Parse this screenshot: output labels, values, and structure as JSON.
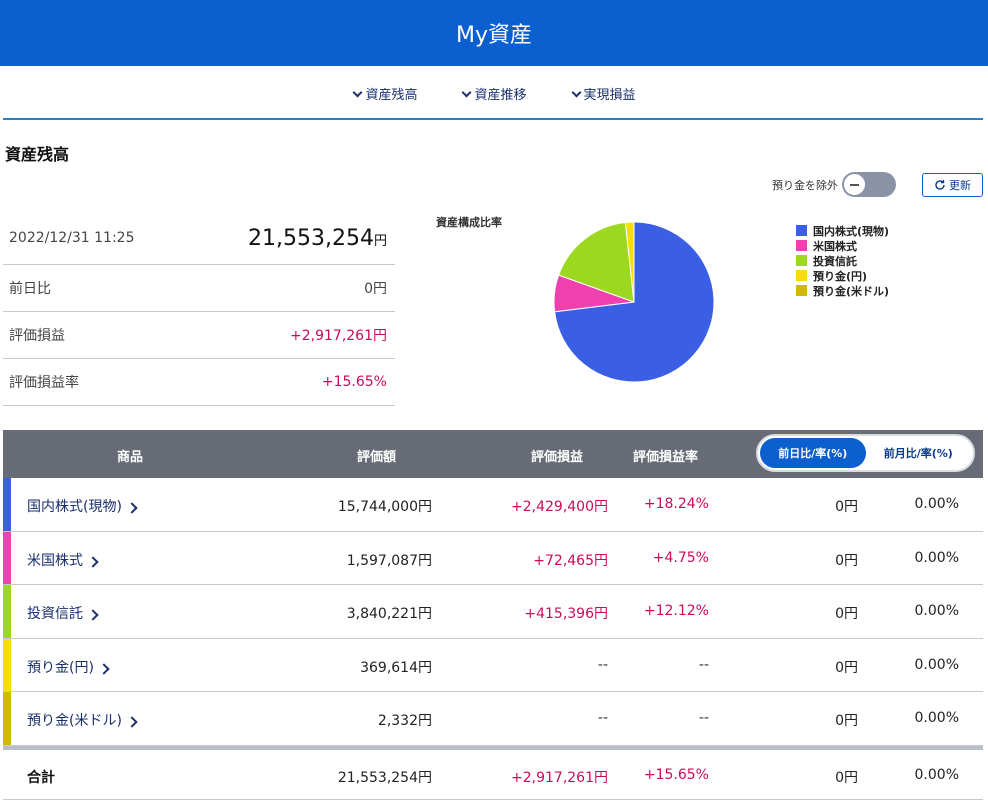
{
  "header": {
    "title": "My資産"
  },
  "subnav": {
    "items": [
      {
        "label": "資産残高"
      },
      {
        "label": "資産推移"
      },
      {
        "label": "実現損益"
      }
    ]
  },
  "section": {
    "title": "資産残高"
  },
  "controls": {
    "exclude_deposit_label": "預り金を除外",
    "refresh_label": "更新"
  },
  "summary": {
    "datetime": "2022/12/31 11:25",
    "total_value": "21,553,254",
    "yen": "円",
    "rows": [
      {
        "label": "前日比",
        "value": "0円"
      },
      {
        "label": "評価損益",
        "value": "+2,917,261円"
      },
      {
        "label": "評価損益率",
        "value": "+15.65%"
      }
    ]
  },
  "chart_data": {
    "type": "pie",
    "title": "資産構成比率",
    "categories": [
      "国内株式(現物)",
      "米国株式",
      "投資信託",
      "預り金(円)",
      "預り金(米ドル)"
    ],
    "values": [
      15744000,
      1597087,
      3840221,
      369614,
      2332
    ],
    "colors": [
      "#3a5fe5",
      "#f03fae",
      "#9bd81f",
      "#f5dd0c",
      "#d1b90a"
    ],
    "legend": "right"
  },
  "table": {
    "headers": {
      "product": "商品",
      "valuation": "評価額",
      "pl": "評価損益",
      "pl_rate": "評価損益率"
    },
    "toggle": {
      "day": "前日比/率(%)",
      "month": "前月比/率(%)"
    },
    "rows": [
      {
        "name": "国内株式(現物)",
        "color": "#3a5fe5",
        "valuation": "15,744,000円",
        "pl": "+2,429,400円",
        "pl_rate": "+18.24%",
        "diff": "0円",
        "diff_rate": "0.00%"
      },
      {
        "name": "米国株式",
        "color": "#f03fae",
        "valuation": "1,597,087円",
        "pl": "+72,465円",
        "pl_rate": "+4.75%",
        "diff": "0円",
        "diff_rate": "0.00%"
      },
      {
        "name": "投資信託",
        "color": "#9bd81f",
        "valuation": "3,840,221円",
        "pl": "+415,396円",
        "pl_rate": "+12.12%",
        "diff": "0円",
        "diff_rate": "0.00%"
      },
      {
        "name": "預り金(円)",
        "color": "#f5dd0c",
        "valuation": "369,614円",
        "pl": "--",
        "pl_rate": "--",
        "diff": "0円",
        "diff_rate": "0.00%"
      },
      {
        "name": "預り金(米ドル)",
        "color": "#d1b90a",
        "valuation": "2,332円",
        "pl": "--",
        "pl_rate": "--",
        "diff": "0円",
        "diff_rate": "0.00%"
      }
    ],
    "total": {
      "label": "合計",
      "valuation": "21,553,254円",
      "pl": "+2,917,261円",
      "pl_rate": "+15.65%",
      "diff": "0円",
      "diff_rate": "0.00%"
    }
  }
}
